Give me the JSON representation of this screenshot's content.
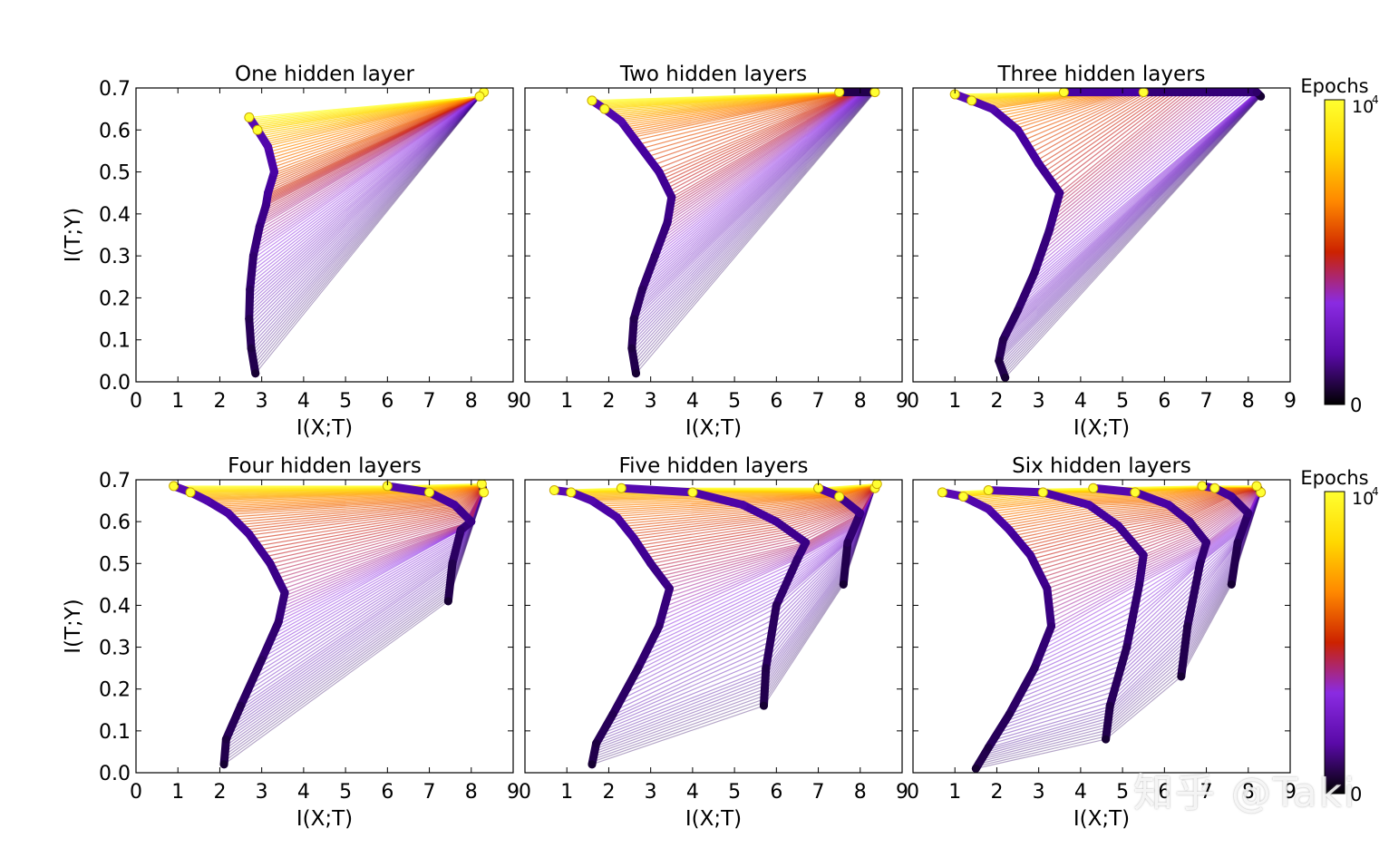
{
  "colorbar": {
    "label": "Epochs",
    "max_label_base": "10",
    "max_label_exp": "4",
    "min_label": "0",
    "stops": [
      "#000000",
      "#5a0aa8",
      "#8a2be2",
      "#cc2200",
      "#ff8800",
      "#ffd800",
      "#ffff30"
    ]
  },
  "watermark": {
    "text": "知乎 @Taki"
  },
  "chart_data": [
    {
      "type": "line",
      "title": "One hidden layer",
      "xlabel": "I(X;T)",
      "ylabel": "I(T;Y)",
      "xlim": [
        0,
        9
      ],
      "ylim": [
        0,
        0.7
      ],
      "xticks": [
        "0",
        "1",
        "2",
        "3",
        "4",
        "5",
        "6",
        "7",
        "8",
        "9"
      ],
      "yticks": [
        "0.0",
        "0.1",
        "0.2",
        "0.3",
        "0.4",
        "0.5",
        "0.6",
        "0.7"
      ],
      "series": [
        {
          "points": [
            [
              2.85,
              0.02
            ],
            [
              2.75,
              0.08
            ],
            [
              2.7,
              0.15
            ],
            [
              2.72,
              0.22
            ],
            [
              2.8,
              0.3
            ],
            [
              2.95,
              0.37
            ],
            [
              3.1,
              0.42
            ],
            [
              3.15,
              0.45
            ],
            [
              3.3,
              0.5
            ],
            [
              3.15,
              0.56
            ],
            [
              2.9,
              0.6
            ],
            [
              2.7,
              0.63
            ]
          ]
        },
        {
          "points": [
            [
              8.3,
              0.69
            ],
            [
              8.2,
              0.68
            ]
          ]
        }
      ]
    },
    {
      "type": "line",
      "title": "Two hidden layers",
      "xlabel": "I(X;T)",
      "ylabel": "",
      "xlim": [
        0,
        9
      ],
      "ylim": [
        0,
        0.7
      ],
      "xticks": [
        "0",
        "1",
        "2",
        "3",
        "4",
        "5",
        "6",
        "7",
        "8",
        "9"
      ],
      "yticks": [
        "0.0",
        "0.1",
        "0.2",
        "0.3",
        "0.4",
        "0.5",
        "0.6",
        "0.7"
      ],
      "series": [
        {
          "points": [
            [
              2.65,
              0.02
            ],
            [
              2.55,
              0.08
            ],
            [
              2.6,
              0.15
            ],
            [
              2.8,
              0.22
            ],
            [
              3.1,
              0.3
            ],
            [
              3.4,
              0.38
            ],
            [
              3.5,
              0.44
            ],
            [
              3.2,
              0.5
            ],
            [
              2.6,
              0.58
            ],
            [
              2.3,
              0.62
            ],
            [
              1.9,
              0.65
            ],
            [
              1.6,
              0.67
            ]
          ]
        },
        {
          "points": [
            [
              8.35,
              0.69
            ],
            [
              7.5,
              0.69
            ]
          ]
        }
      ]
    },
    {
      "type": "line",
      "title": "Three hidden layers",
      "xlabel": "I(X;T)",
      "ylabel": "",
      "xlim": [
        0,
        9
      ],
      "ylim": [
        0,
        0.7
      ],
      "xticks": [
        "0",
        "1",
        "2",
        "3",
        "4",
        "5",
        "6",
        "7",
        "8",
        "9"
      ],
      "yticks": [
        "0.0",
        "0.1",
        "0.2",
        "0.3",
        "0.4",
        "0.5",
        "0.6",
        "0.7"
      ],
      "series": [
        {
          "points": [
            [
              2.2,
              0.01
            ],
            [
              2.05,
              0.05
            ],
            [
              2.15,
              0.1
            ],
            [
              2.5,
              0.17
            ],
            [
              2.9,
              0.26
            ],
            [
              3.25,
              0.36
            ],
            [
              3.5,
              0.45
            ],
            [
              3.0,
              0.52
            ],
            [
              2.5,
              0.6
            ],
            [
              1.9,
              0.65
            ],
            [
              1.4,
              0.67
            ],
            [
              1.0,
              0.685
            ]
          ]
        },
        {
          "points": [
            [
              8.3,
              0.68
            ],
            [
              8.2,
              0.69
            ],
            [
              5.5,
              0.69
            ],
            [
              3.6,
              0.69
            ]
          ]
        }
      ]
    },
    {
      "type": "line",
      "title": "Four hidden layers",
      "xlabel": "I(X;T)",
      "ylabel": "I(T;Y)",
      "xlim": [
        0,
        9
      ],
      "ylim": [
        0,
        0.7
      ],
      "xticks": [
        "0",
        "1",
        "2",
        "3",
        "4",
        "5",
        "6",
        "7",
        "8",
        "9"
      ],
      "yticks": [
        "0.0",
        "0.1",
        "0.2",
        "0.3",
        "0.4",
        "0.5",
        "0.6",
        "0.7"
      ],
      "series": [
        {
          "points": [
            [
              2.1,
              0.02
            ],
            [
              2.15,
              0.08
            ],
            [
              2.5,
              0.16
            ],
            [
              3.0,
              0.27
            ],
            [
              3.4,
              0.36
            ],
            [
              3.55,
              0.43
            ],
            [
              3.2,
              0.5
            ],
            [
              2.7,
              0.57
            ],
            [
              2.2,
              0.62
            ],
            [
              1.7,
              0.65
            ],
            [
              1.3,
              0.67
            ],
            [
              0.9,
              0.685
            ]
          ]
        },
        {
          "points": [
            [
              7.45,
              0.41
            ],
            [
              7.55,
              0.5
            ],
            [
              7.75,
              0.58
            ],
            [
              8.0,
              0.6
            ],
            [
              7.6,
              0.64
            ],
            [
              7.0,
              0.67
            ],
            [
              6.0,
              0.685
            ]
          ]
        },
        {
          "points": [
            [
              8.3,
              0.67
            ],
            [
              8.25,
              0.69
            ]
          ]
        }
      ]
    },
    {
      "type": "line",
      "title": "Five hidden layers",
      "xlabel": "I(X;T)",
      "ylabel": "",
      "xlim": [
        0,
        9
      ],
      "ylim": [
        0,
        0.7
      ],
      "xticks": [
        "0",
        "1",
        "2",
        "3",
        "4",
        "5",
        "6",
        "7",
        "8",
        "9"
      ],
      "yticks": [
        "0.0",
        "0.1",
        "0.2",
        "0.3",
        "0.4",
        "0.5",
        "0.6",
        "0.7"
      ],
      "series": [
        {
          "points": [
            [
              1.6,
              0.02
            ],
            [
              1.7,
              0.07
            ],
            [
              2.1,
              0.14
            ],
            [
              2.7,
              0.25
            ],
            [
              3.2,
              0.35
            ],
            [
              3.45,
              0.44
            ],
            [
              3.0,
              0.5
            ],
            [
              2.6,
              0.56
            ],
            [
              2.2,
              0.61
            ],
            [
              1.6,
              0.65
            ],
            [
              1.1,
              0.67
            ],
            [
              0.7,
              0.675
            ]
          ]
        },
        {
          "points": [
            [
              5.7,
              0.16
            ],
            [
              5.75,
              0.25
            ],
            [
              6.0,
              0.4
            ],
            [
              6.5,
              0.51
            ],
            [
              6.7,
              0.55
            ],
            [
              6.0,
              0.6
            ],
            [
              5.2,
              0.64
            ],
            [
              4.0,
              0.67
            ],
            [
              2.3,
              0.68
            ]
          ]
        },
        {
          "points": [
            [
              7.6,
              0.45
            ],
            [
              7.7,
              0.55
            ],
            [
              8.0,
              0.62
            ],
            [
              7.5,
              0.66
            ],
            [
              7.0,
              0.68
            ]
          ]
        },
        {
          "points": [
            [
              8.35,
              0.68
            ],
            [
              8.4,
              0.69
            ]
          ]
        }
      ]
    },
    {
      "type": "line",
      "title": "Six hidden layers",
      "xlabel": "I(X;T)",
      "ylabel": "",
      "xlim": [
        0,
        9
      ],
      "ylim": [
        0,
        0.7
      ],
      "xticks": [
        "0",
        "1",
        "2",
        "3",
        "4",
        "5",
        "6",
        "7",
        "8",
        "9"
      ],
      "yticks": [
        "0.0",
        "0.1",
        "0.2",
        "0.3",
        "0.4",
        "0.5",
        "0.6",
        "0.7"
      ],
      "series": [
        {
          "points": [
            [
              1.5,
              0.01
            ],
            [
              1.8,
              0.06
            ],
            [
              2.3,
              0.14
            ],
            [
              2.9,
              0.25
            ],
            [
              3.3,
              0.35
            ],
            [
              3.2,
              0.44
            ],
            [
              2.8,
              0.52
            ],
            [
              2.3,
              0.58
            ],
            [
              1.8,
              0.63
            ],
            [
              1.2,
              0.66
            ],
            [
              0.7,
              0.67
            ]
          ]
        },
        {
          "points": [
            [
              4.6,
              0.08
            ],
            [
              4.7,
              0.16
            ],
            [
              5.1,
              0.3
            ],
            [
              5.4,
              0.45
            ],
            [
              5.5,
              0.52
            ],
            [
              4.9,
              0.59
            ],
            [
              4.2,
              0.64
            ],
            [
              3.1,
              0.67
            ],
            [
              1.8,
              0.675
            ]
          ]
        },
        {
          "points": [
            [
              6.4,
              0.23
            ],
            [
              6.55,
              0.35
            ],
            [
              6.85,
              0.5
            ],
            [
              7.0,
              0.55
            ],
            [
              6.6,
              0.6
            ],
            [
              6.1,
              0.64
            ],
            [
              5.3,
              0.67
            ],
            [
              4.3,
              0.68
            ]
          ]
        },
        {
          "points": [
            [
              7.6,
              0.45
            ],
            [
              7.75,
              0.55
            ],
            [
              8.0,
              0.62
            ],
            [
              7.6,
              0.66
            ],
            [
              7.2,
              0.68
            ],
            [
              6.9,
              0.685
            ]
          ]
        },
        {
          "points": [
            [
              8.3,
              0.67
            ],
            [
              8.2,
              0.685
            ]
          ]
        }
      ]
    }
  ]
}
